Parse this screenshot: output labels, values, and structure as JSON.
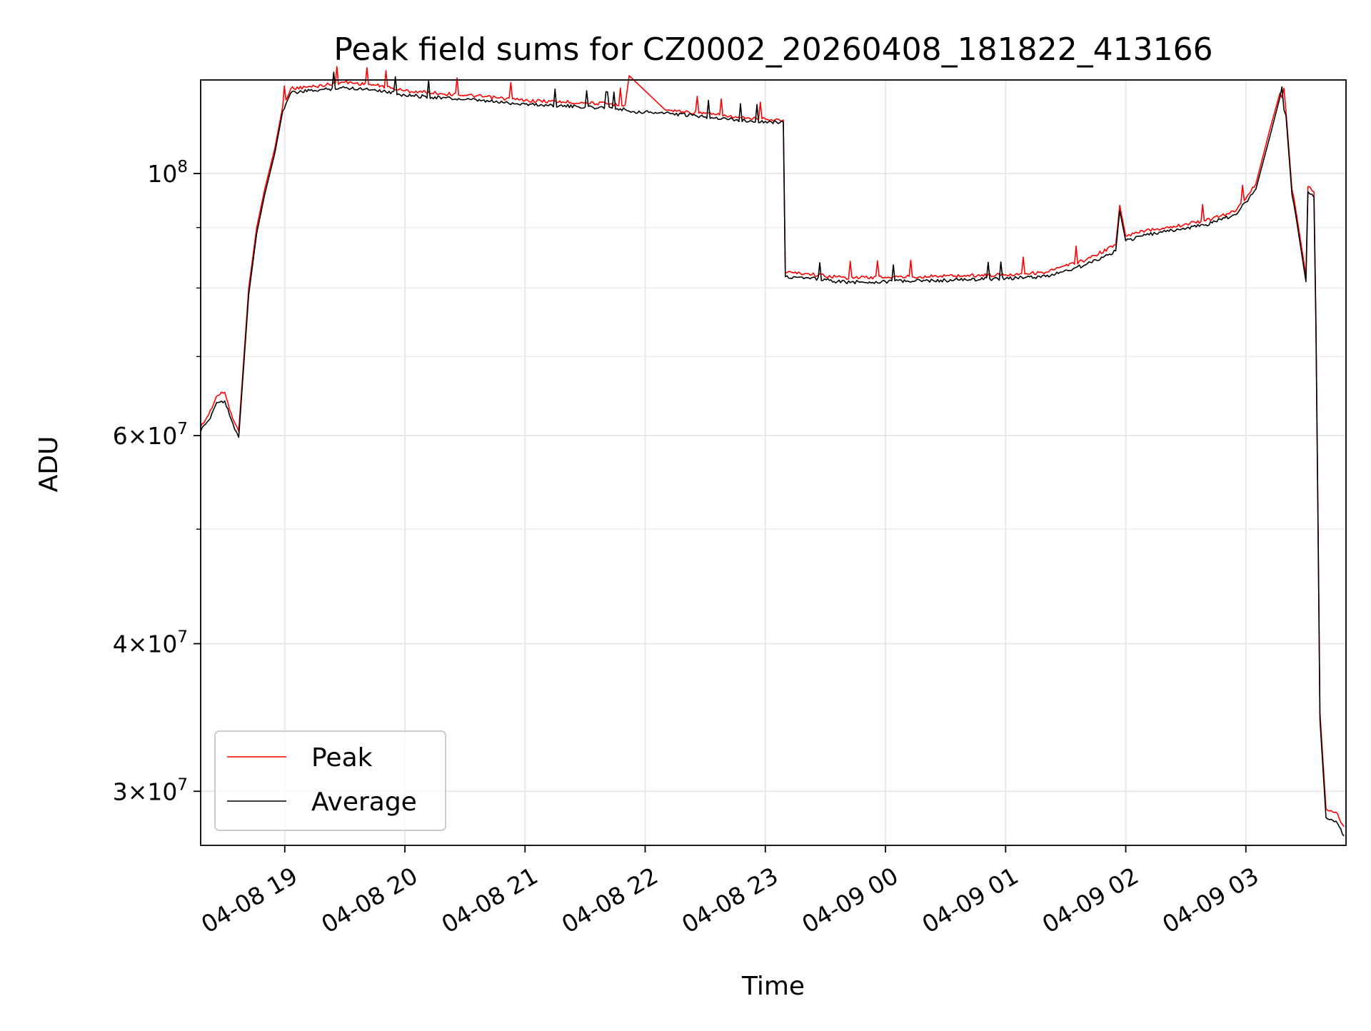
{
  "chart_data": {
    "type": "line",
    "title": "Peak field sums for CZ0002_20260408_181822_413166",
    "xlabel": "Time",
    "ylabel": "ADU",
    "y_scale": "log",
    "xlim": [
      "2026-04-08 18:18",
      "2026-04-09 03:50"
    ],
    "ylim": [
      27000000,
      120000000
    ],
    "grid": true,
    "legend": {
      "placement": "lower-left",
      "entries": [
        "Peak",
        "Average"
      ]
    },
    "x_ticks": [
      "04-08 19",
      "04-08 20",
      "04-08 21",
      "04-08 22",
      "04-08 23",
      "04-09 00",
      "04-09 01",
      "04-09 02",
      "04-09 03"
    ],
    "x_tick_times": [
      "2026-04-08 19:00",
      "2026-04-08 20:00",
      "2026-04-08 21:00",
      "2026-04-08 22:00",
      "2026-04-08 23:00",
      "2026-04-09 00:00",
      "2026-04-09 01:00",
      "2026-04-09 02:00",
      "2026-04-09 03:00"
    ],
    "y_ticks": [
      {
        "value": 100000000,
        "mantissa": "",
        "base": "10",
        "exp": "8"
      },
      {
        "value": 60000000,
        "mantissa": "6",
        "base": "10",
        "exp": "7"
      },
      {
        "value": 40000000,
        "mantissa": "4",
        "base": "10",
        "exp": "7"
      },
      {
        "value": 30000000,
        "mantissa": "3",
        "base": "10",
        "exp": "7"
      }
    ],
    "y_minor_ticks": [
      50000000,
      70000000,
      80000000,
      90000000
    ],
    "series": [
      {
        "name": "Peak",
        "color": "#ff0000",
        "x": [
          "2026-04-08 18:18",
          "2026-04-08 18:22",
          "2026-04-08 18:26",
          "2026-04-08 18:30",
          "2026-04-08 18:34",
          "2026-04-08 18:37",
          "2026-04-08 18:42",
          "2026-04-08 18:46",
          "2026-04-08 18:50",
          "2026-04-08 18:55",
          "2026-04-08 18:59",
          "2026-04-08 19:03",
          "2026-04-08 19:15",
          "2026-04-08 19:30",
          "2026-04-08 19:45",
          "2026-04-08 20:00",
          "2026-04-08 20:30",
          "2026-04-08 21:00",
          "2026-04-08 21:30",
          "2026-04-08 21:50",
          "2026-04-08 21:52",
          "2026-04-08 22:10",
          "2026-04-08 22:30",
          "2026-04-08 22:50",
          "2026-04-08 23:00",
          "2026-04-08 23:03",
          "2026-04-08 23:09",
          "2026-04-08 23:10",
          "2026-04-08 23:20",
          "2026-04-08 23:40",
          "2026-04-09 00:00",
          "2026-04-09 00:30",
          "2026-04-09 01:00",
          "2026-04-09 01:20",
          "2026-04-09 01:40",
          "2026-04-09 01:55",
          "2026-04-09 01:57",
          "2026-04-09 02:00",
          "2026-04-09 02:10",
          "2026-04-09 02:20",
          "2026-04-09 02:40",
          "2026-04-09 02:55",
          "2026-04-09 03:05",
          "2026-04-09 03:12",
          "2026-04-09 03:17",
          "2026-04-09 03:20",
          "2026-04-09 03:23",
          "2026-04-09 03:25",
          "2026-04-09 03:30",
          "2026-04-09 03:31",
          "2026-04-09 03:34",
          "2026-04-09 03:35",
          "2026-04-09 03:36",
          "2026-04-09 03:37",
          "2026-04-09 03:40",
          "2026-04-09 03:45",
          "2026-04-09 03:49"
        ],
        "y": [
          61000000,
          62500000,
          64800000,
          65300000,
          62000000,
          60500000,
          80000000,
          90000000,
          97000000,
          105000000,
          114000000,
          118000000,
          118500000,
          119500000,
          118800000,
          117500000,
          116500000,
          115300000,
          114800000,
          114300000,
          121000000,
          113200000,
          112400000,
          111300000,
          111200000,
          111100000,
          111000000,
          82500000,
          82300000,
          81600000,
          81700000,
          81900000,
          82100000,
          82500000,
          84500000,
          87000000,
          94000000,
          88500000,
          89500000,
          90000000,
          91200000,
          93000000,
          98000000,
          109000000,
          117000000,
          113000000,
          97000000,
          93000000,
          82000000,
          97500000,
          96500000,
          75000000,
          52000000,
          35000000,
          29000000,
          28800000,
          28000000
        ]
      },
      {
        "name": "Average",
        "color": "#000000",
        "x": [
          "2026-04-08 18:18",
          "2026-04-08 18:22",
          "2026-04-08 18:26",
          "2026-04-08 18:30",
          "2026-04-08 18:34",
          "2026-04-08 18:37",
          "2026-04-08 18:42",
          "2026-04-08 18:46",
          "2026-04-08 18:50",
          "2026-04-08 18:55",
          "2026-04-08 18:59",
          "2026-04-08 19:03",
          "2026-04-08 19:15",
          "2026-04-08 19:30",
          "2026-04-08 19:45",
          "2026-04-08 20:00",
          "2026-04-08 20:30",
          "2026-04-08 21:00",
          "2026-04-08 21:30",
          "2026-04-08 21:50",
          "2026-04-08 21:52",
          "2026-04-08 22:10",
          "2026-04-08 22:30",
          "2026-04-08 22:50",
          "2026-04-08 23:00",
          "2026-04-08 23:03",
          "2026-04-08 23:09",
          "2026-04-08 23:10",
          "2026-04-08 23:20",
          "2026-04-08 23:40",
          "2026-04-09 00:00",
          "2026-04-09 00:30",
          "2026-04-09 01:00",
          "2026-04-09 01:20",
          "2026-04-09 01:40",
          "2026-04-09 01:55",
          "2026-04-09 01:57",
          "2026-04-09 02:00",
          "2026-04-09 02:10",
          "2026-04-09 02:20",
          "2026-04-09 02:40",
          "2026-04-09 02:55",
          "2026-04-09 03:05",
          "2026-04-09 03:12",
          "2026-04-09 03:17",
          "2026-04-09 03:20",
          "2026-04-09 03:23",
          "2026-04-09 03:25",
          "2026-04-09 03:30",
          "2026-04-09 03:31",
          "2026-04-09 03:34",
          "2026-04-09 03:35",
          "2026-04-09 03:36",
          "2026-04-09 03:37",
          "2026-04-09 03:40",
          "2026-04-09 03:45",
          "2026-04-09 03:49"
        ],
        "y": [
          60500000,
          61800000,
          64000000,
          64200000,
          61500000,
          59800000,
          79000000,
          89000000,
          96000000,
          104000000,
          113000000,
          117000000,
          117600000,
          118200000,
          117800000,
          116500000,
          115500000,
          114500000,
          113800000,
          113300000,
          112900000,
          112500000,
          111700000,
          110800000,
          110700000,
          110600000,
          110500000,
          81800000,
          81600000,
          80900000,
          81000000,
          81200000,
          81500000,
          81800000,
          83700000,
          86000000,
          93000000,
          87700000,
          88700000,
          89300000,
          90500000,
          92300000,
          97000000,
          107500000,
          116000000,
          112000000,
          96000000,
          92000000,
          81000000,
          96500000,
          95500000,
          74000000,
          51000000,
          34500000,
          28500000,
          28300000,
          27500000
        ]
      }
    ]
  }
}
